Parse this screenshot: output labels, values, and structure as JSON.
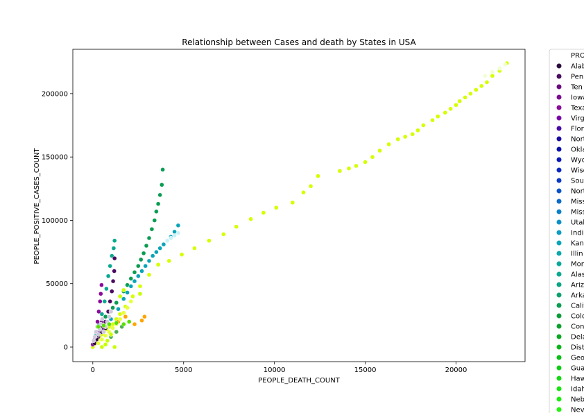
{
  "chart_data": {
    "type": "scatter",
    "title": "Relationship between Cases and death by States in USA",
    "xlabel": "PEOPLE_DEATH_COUNT",
    "ylabel": "PEOPLE_POSITIVE_CASES_COUNT",
    "xlim": [
      -1100,
      23800
    ],
    "ylim": [
      -11500,
      235000
    ],
    "xticks": [
      0,
      5000,
      10000,
      15000,
      20000
    ],
    "yticks": [
      0,
      50000,
      100000,
      150000,
      200000
    ],
    "grid": false,
    "legend": {
      "placement": "outside-right",
      "title": "PRO",
      "entries": [
        {
          "label": "Alab",
          "color": "#2b0a3d"
        },
        {
          "label": "Pen",
          "color": "#4a0a5e"
        },
        {
          "label": "Ten",
          "color": "#6a0a7e"
        },
        {
          "label": "Iowa",
          "color": "#7a0a8e"
        },
        {
          "label": "Texa",
          "color": "#8a0a9a"
        },
        {
          "label": "Virg",
          "color": "#7a00aa"
        },
        {
          "label": "Flor",
          "color": "#4a0aa8"
        },
        {
          "label": "Nort",
          "color": "#1a0aa0"
        },
        {
          "label": "Okla",
          "color": "#0a10a8"
        },
        {
          "label": "Wyo",
          "color": "#0a1ab4"
        },
        {
          "label": "Wisc",
          "color": "#0a28c0"
        },
        {
          "label": "Sou",
          "color": "#0a3ac4"
        },
        {
          "label": "Nort",
          "color": "#0a52c8"
        },
        {
          "label": "Miss",
          "color": "#0a6ac8"
        },
        {
          "label": "Miss",
          "color": "#0a80c8"
        },
        {
          "label": "Utah",
          "color": "#0a90c8"
        },
        {
          "label": "Indi",
          "color": "#0a9cc4"
        },
        {
          "label": "Kan",
          "color": "#0aa4b8"
        },
        {
          "label": "Illin",
          "color": "#0aa8ac"
        },
        {
          "label": "Mon",
          "color": "#0aa89c"
        },
        {
          "label": "Alas",
          "color": "#0aa890"
        },
        {
          "label": "Arizo",
          "color": "#0aa484"
        },
        {
          "label": "Arka",
          "color": "#0aa070"
        },
        {
          "label": "Calif",
          "color": "#0a9c52"
        },
        {
          "label": "Colo",
          "color": "#0a9c38"
        },
        {
          "label": "Conn",
          "color": "#0aa02c"
        },
        {
          "label": "Dela",
          "color": "#0aa820"
        },
        {
          "label": "Distr",
          "color": "#0ab41a"
        },
        {
          "label": "Geo",
          "color": "#0ac016"
        },
        {
          "label": "Gua",
          "color": "#10cc14"
        },
        {
          "label": "Haw",
          "color": "#14d812"
        },
        {
          "label": "Idah",
          "color": "#18e412"
        },
        {
          "label": "Nebr",
          "color": "#1cec10"
        },
        {
          "label": "Nev",
          "color": "#24f410"
        }
      ]
    },
    "series": [
      {
        "color": "#d4ff00",
        "x": [
          0,
          80,
          160,
          260,
          380,
          500,
          620,
          760,
          920,
          1100,
          1300,
          1500,
          1800,
          2200,
          2600,
          3100,
          3600,
          4200,
          4900,
          5600,
          6400,
          7200,
          7900,
          8700,
          9400,
          10100,
          11000,
          11600,
          12000,
          12400,
          13600,
          14100,
          14500,
          15000,
          15400,
          15800,
          16300,
          16800,
          17200,
          17600,
          17900,
          18200,
          18700,
          19000,
          19400,
          19700,
          20000,
          20200,
          20500,
          20800,
          21100,
          21400,
          21700,
          22000,
          22400,
          22800
        ],
        "y": [
          0,
          2000,
          4000,
          6000,
          8000,
          10000,
          12000,
          14000,
          16000,
          18000,
          22000,
          26000,
          32000,
          40000,
          48000,
          57000,
          65000,
          68000,
          73000,
          78000,
          84000,
          89000,
          95000,
          101000,
          106000,
          110000,
          114000,
          122000,
          127000,
          135000,
          139000,
          141000,
          143000,
          146000,
          150000,
          155000,
          160000,
          164000,
          166000,
          168000,
          171000,
          175000,
          179000,
          182000,
          185000,
          188000,
          191000,
          194000,
          197000,
          200000,
          203000,
          206000,
          209000,
          214000,
          218000,
          224000
        ]
      },
      {
        "color": "#0a9c52",
        "x": [
          500,
          700,
          900,
          1100,
          1300,
          1500,
          1700,
          1900,
          2100,
          2300,
          2500,
          2650,
          2800,
          2950,
          3100,
          3250,
          3400,
          3500,
          3600,
          3700,
          3800,
          3850
        ],
        "y": [
          20000,
          24000,
          28000,
          31000,
          35000,
          40000,
          44000,
          49000,
          54000,
          59000,
          64000,
          69000,
          74000,
          80000,
          86000,
          93000,
          100000,
          107000,
          113000,
          120000,
          128000,
          140000
        ]
      },
      {
        "color": "#0aa4b8",
        "x": [
          600,
          1000,
          1400,
          1700,
          1900,
          2100,
          2300,
          2500,
          2700,
          2900,
          3100,
          3300,
          3500,
          3700,
          3900,
          4100,
          4300,
          4500,
          4700
        ],
        "y": [
          16000,
          22000,
          30000,
          38000,
          43000,
          48000,
          52000,
          56000,
          60000,
          64000,
          68000,
          72000,
          75000,
          78000,
          81000,
          84000,
          87000,
          91000,
          96000
        ]
      },
      {
        "color": "#0aa890",
        "x": [
          200,
          350,
          500,
          650,
          750,
          850,
          950,
          1050,
          1150,
          1200
        ],
        "y": [
          10000,
          18000,
          26000,
          36000,
          46000,
          56000,
          64000,
          72000,
          78000,
          84000
        ]
      },
      {
        "color": "#8a0a9a",
        "x": [
          0,
          100,
          180,
          260,
          330,
          400,
          440,
          480
        ],
        "y": [
          2000,
          6000,
          12000,
          20000,
          28000,
          36000,
          42000,
          49000
        ]
      },
      {
        "color": "#4a0a5e",
        "x": [
          300,
          500,
          700,
          850,
          950,
          1050,
          1120,
          1180,
          1200
        ],
        "y": [
          8000,
          14000,
          20000,
          28000,
          36000,
          44000,
          52000,
          60000,
          70000
        ]
      },
      {
        "color": "#6a0a7e",
        "x": [
          100,
          200,
          300,
          400,
          500
        ],
        "y": [
          5000,
          8000,
          12000,
          16000,
          20000
        ]
      },
      {
        "color": "#2b0a3d",
        "x": [
          100,
          200,
          300,
          500,
          700
        ],
        "y": [
          3000,
          6000,
          9000,
          12000,
          15000
        ]
      },
      {
        "color": "#0a10a8",
        "x": [
          120,
          200,
          400
        ],
        "y": [
          8000,
          12000,
          14000
        ]
      },
      {
        "color": "#ffa500",
        "x": [
          1400,
          1800,
          2300,
          2700,
          2850
        ],
        "y": [
          20000,
          24000,
          18000,
          21000,
          24000
        ]
      },
      {
        "color": "#4caf50",
        "x": [
          1000,
          1300,
          1600,
          2000
        ],
        "y": [
          8000,
          12000,
          16000,
          20000
        ]
      },
      {
        "color": "#e8ff3a",
        "x": [
          300,
          500,
          700,
          900,
          1100,
          1300,
          1500,
          1700,
          1900,
          2100
        ],
        "y": [
          3000,
          6000,
          9000,
          12000,
          15000,
          18000,
          22000,
          27000,
          31000,
          36000
        ]
      },
      {
        "color": "#d0c8dc",
        "x": [
          50,
          120,
          180,
          250,
          320,
          380,
          450,
          520,
          600,
          700,
          800,
          900,
          1000
        ],
        "y": [
          5000,
          8000,
          12000,
          16000,
          10000,
          14000,
          18000,
          22000,
          12000,
          16000,
          20000,
          24000,
          28000
        ]
      },
      {
        "color": "#c8ff00",
        "x": [
          500,
          700,
          800,
          1000,
          1200,
          1500,
          1700,
          2600
        ],
        "y": [
          0,
          2000,
          5000,
          10000,
          0,
          40000,
          45000,
          42000
        ]
      },
      {
        "color": "#c8f0f8",
        "x": [
          4100,
          4300,
          4500,
          4700
        ],
        "y": [
          84000,
          86000,
          88000,
          90000
        ]
      },
      {
        "color": "#f0ffd0",
        "x": [
          21600,
          22000,
          22400,
          22700
        ],
        "y": [
          214000,
          217000,
          220000,
          223000
        ]
      },
      {
        "color": "#58e000",
        "x": [
          300,
          600,
          900,
          1300,
          1700,
          2000
        ],
        "y": [
          16000,
          17000,
          18000,
          19000,
          18000,
          20000
        ]
      }
    ]
  }
}
